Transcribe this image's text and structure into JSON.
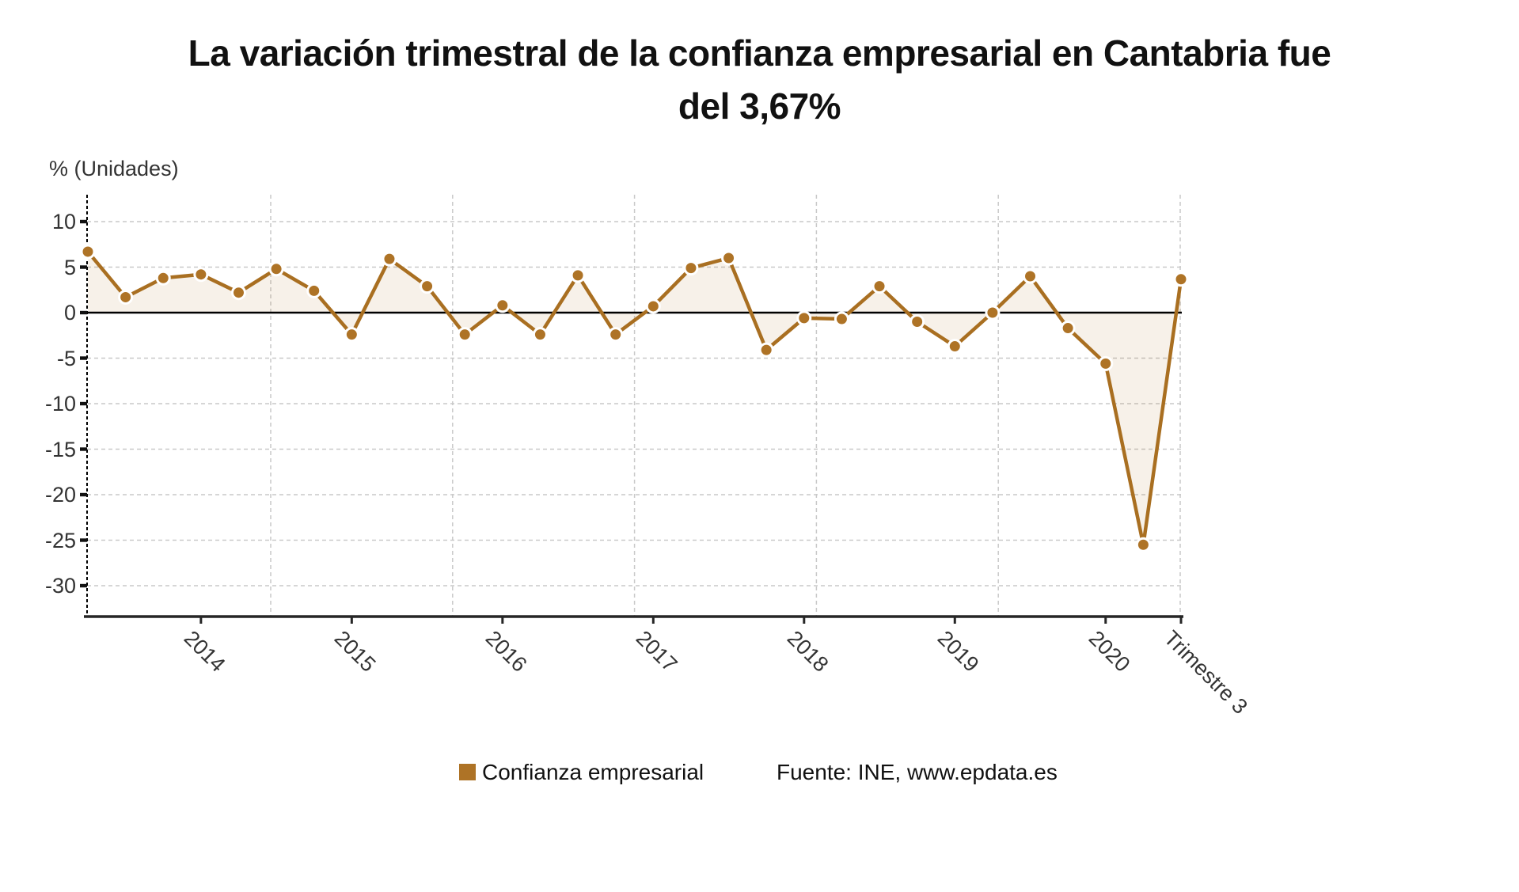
{
  "page": {
    "background": "#ffffff"
  },
  "chart_data": {
    "type": "area",
    "title": "La variación trimestral de la confianza empresarial en Cantabria fue del 3,67%",
    "title_lines": [
      "La variación trimestral de la confianza empresarial en Cantabria fue",
      "del 3,67%"
    ],
    "y_axis_title": "% (Unidades)",
    "series": [
      {
        "name": "Confianza empresarial",
        "values": [
          6.7,
          1.7,
          3.8,
          4.2,
          2.2,
          4.8,
          2.4,
          -2.4,
          5.9,
          2.9,
          -2.4,
          0.8,
          -2.4,
          4.1,
          -2.4,
          0.7,
          4.9,
          6.0,
          -4.1,
          -0.6,
          -0.7,
          2.9,
          -1.0,
          -3.7,
          0.0,
          4.0,
          -1.7,
          -5.6,
          -25.5,
          3.67
        ]
      }
    ],
    "x_ticks": [
      {
        "label": "2014",
        "index": 3
      },
      {
        "label": "2015",
        "index": 7
      },
      {
        "label": "2016",
        "index": 11
      },
      {
        "label": "2017",
        "index": 15
      },
      {
        "label": "2018",
        "index": 19
      },
      {
        "label": "2019",
        "index": 23
      },
      {
        "label": "2020",
        "index": 27
      },
      {
        "label": "Trimestre 3",
        "index": 29
      }
    ],
    "y_ticks": [
      10,
      5,
      0,
      -5,
      -10,
      -15,
      -20,
      -25,
      -30
    ],
    "ylim": [
      -33.4,
      13.0
    ],
    "threshold": 0,
    "grid": true,
    "legend_position": "bottom",
    "colors": {
      "line": "#A96F21",
      "marker": "#AE7326",
      "marker_border": "#ffffff",
      "fill": "rgba(177, 118, 41, 0.10)",
      "grid": "#c9c9c9",
      "axis": "#262626",
      "zero_line": "#000000",
      "text": "#333333",
      "title": "#111111"
    }
  },
  "legend": {
    "series_label": "Confianza empresarial",
    "source_label": "Fuente: INE, www.epdata.es"
  }
}
